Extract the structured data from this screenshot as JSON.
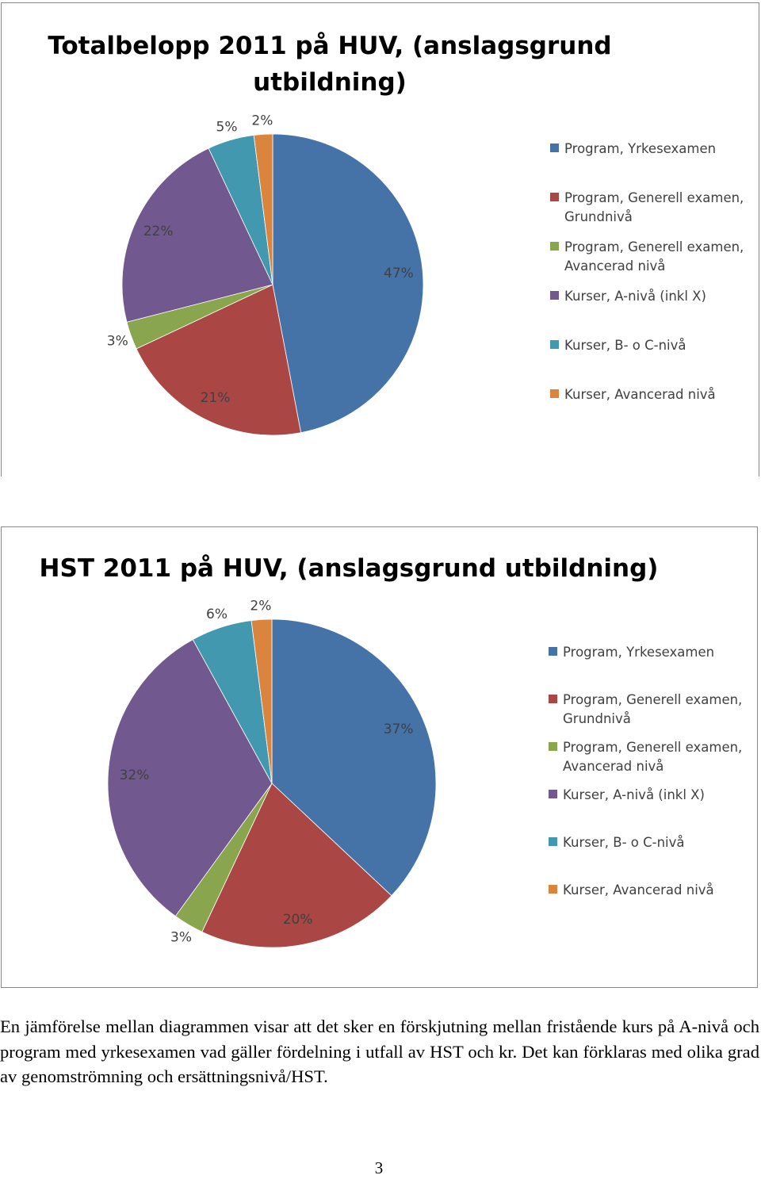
{
  "colors": {
    "program_yrkesexamen": "#4572A7",
    "program_generell_grund": "#AA4643",
    "program_generell_avancerad": "#89A54E",
    "kurser_a": "#71588F",
    "kurser_bc": "#4198AF",
    "kurser_avancerad": "#DB843D"
  },
  "chart_data": [
    {
      "type": "pie",
      "title": "Totalbelopp 2011 på HUV, (anslagsgrund utbildning)",
      "title_lines": [
        "Totalbelopp 2011 på HUV, (anslagsgrund",
        "utbildning)"
      ],
      "start_angle_deg": 0,
      "direction": "clockwise",
      "legend_position": "right",
      "slices": [
        {
          "label": "Program, Yrkesexamen",
          "label_lines": [
            "Program, Yrkesexamen"
          ],
          "value": 47,
          "data_label": "47%",
          "color": "#4572A7"
        },
        {
          "label": "Program, Generell examen, Grundnivå",
          "label_lines": [
            "Program, Generell examen,",
            "Grundnivå"
          ],
          "value": 21,
          "data_label": "21%",
          "color": "#AA4643"
        },
        {
          "label": "Program, Generell examen, Avancerad nivå",
          "label_lines": [
            "Program, Generell examen,",
            "Avancerad nivå"
          ],
          "value": 3,
          "data_label": "3%",
          "color": "#89A54E"
        },
        {
          "label": "Kurser, A-nivå (inkl X)",
          "label_lines": [
            "Kurser, A-nivå (inkl X)"
          ],
          "value": 22,
          "data_label": "22%",
          "color": "#71588F"
        },
        {
          "label": "Kurser, B- o C-nivå",
          "label_lines": [
            "Kurser, B- o C-nivå"
          ],
          "value": 5,
          "data_label": "5%",
          "color": "#4198AF"
        },
        {
          "label": "Kurser, Avancerad nivå",
          "label_lines": [
            "Kurser, Avancerad nivå"
          ],
          "value": 2,
          "data_label": "2%",
          "color": "#DB843D"
        }
      ]
    },
    {
      "type": "pie",
      "title": "HST 2011 på HUV, (anslagsgrund utbildning)",
      "title_lines": [
        "HST 2011 på HUV, (anslagsgrund utbildning)"
      ],
      "start_angle_deg": 0,
      "direction": "clockwise",
      "legend_position": "right",
      "slices": [
        {
          "label": "Program, Yrkesexamen",
          "label_lines": [
            "Program, Yrkesexamen"
          ],
          "value": 37,
          "data_label": "37%",
          "color": "#4572A7"
        },
        {
          "label": "Program, Generell examen, Grundnivå",
          "label_lines": [
            "Program, Generell examen,",
            "Grundnivå"
          ],
          "value": 20,
          "data_label": "20%",
          "color": "#AA4643"
        },
        {
          "label": "Program, Generell examen, Avancerad nivå",
          "label_lines": [
            "Program, Generell examen,",
            "Avancerad nivå"
          ],
          "value": 3,
          "data_label": "3%",
          "color": "#89A54E"
        },
        {
          "label": "Kurser, A-nivå (inkl X)",
          "label_lines": [
            "Kurser, A-nivå (inkl X)"
          ],
          "value": 32,
          "data_label": "32%",
          "color": "#71588F"
        },
        {
          "label": "Kurser, B- o C-nivå",
          "label_lines": [
            "Kurser, B- o C-nivå"
          ],
          "value": 6,
          "data_label": "6%",
          "color": "#4198AF"
        },
        {
          "label": "Kurser, Avancerad nivå",
          "label_lines": [
            "Kurser, Avancerad nivå"
          ],
          "value": 2,
          "data_label": "2%",
          "color": "#DB843D"
        }
      ]
    }
  ],
  "body_text": "En jämförelse mellan diagrammen visar att det sker en förskjutning mellan fristående kurs på A-nivå och program med yrkesexamen vad gäller fördelning i utfall av HST och kr. Det kan förklaras med olika grad av genomströmning och ersättningsnivå/HST.",
  "page_number": "3"
}
